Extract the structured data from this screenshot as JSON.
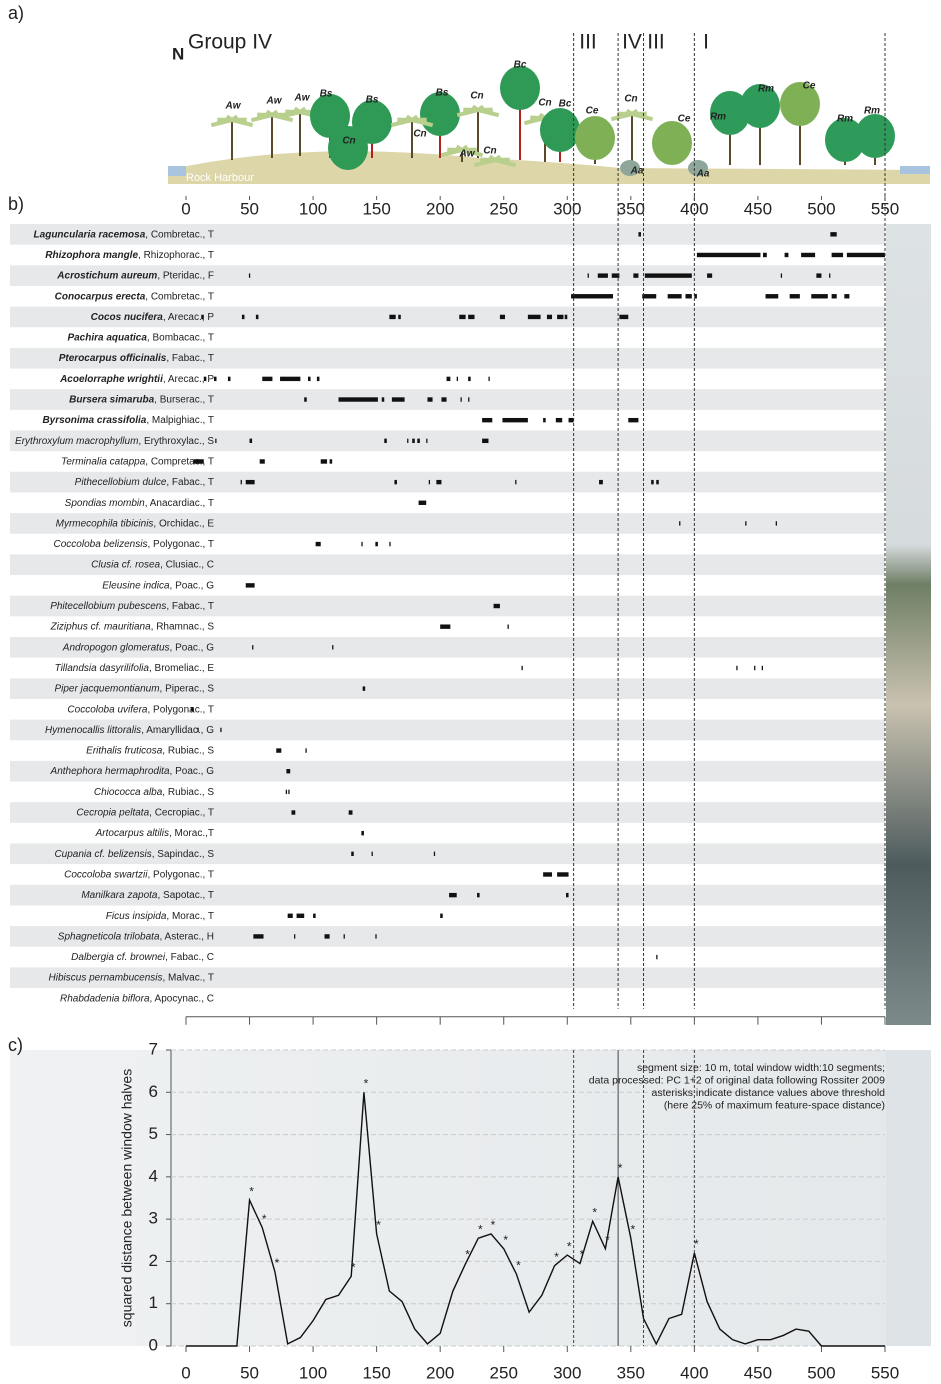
{
  "profile": {
    "panel_label": "a)",
    "north": "N",
    "group_label": "Group IV",
    "zone_labels": [
      "III",
      "IV",
      "III",
      "I"
    ],
    "place": "Rock Harbour",
    "tree_labels": [
      "Aw",
      "Aw",
      "Aw",
      "Bs",
      "Bs",
      "Cn",
      "Bs",
      "Cn",
      "Cn",
      "Aw",
      "Cn",
      "Bc",
      "Cn",
      "Bc",
      "Ce",
      "Cn",
      "Ce",
      "Aa",
      "Aa",
      "Rm",
      "Rm",
      "Ce",
      "Rm",
      "Rm"
    ]
  },
  "chart_data": [
    {
      "type": "presence",
      "panel_label": "b)",
      "xlim": [
        0,
        550
      ],
      "xticks": [
        0,
        50,
        100,
        150,
        200,
        250,
        300,
        350,
        400,
        450,
        500,
        550
      ],
      "boundaries": [
        305,
        340,
        360,
        400,
        550
      ],
      "color": "#111111",
      "rows": [
        {
          "name": "Laguncularia racemosa",
          "detail": ", Combretac., T",
          "bold": true,
          "segments": [
            [
              356,
              358
            ],
            [
              507,
              512
            ]
          ]
        },
        {
          "name": "Rhizophora mangle",
          "detail": ", Rhizophorac., T",
          "bold": true,
          "segments": [
            [
              402,
              452
            ],
            [
              454,
              457
            ],
            [
              471,
              474
            ],
            [
              484,
              495
            ],
            [
              508,
              517
            ],
            [
              520,
              550
            ]
          ]
        },
        {
          "name": "Acrostichum aureum",
          "detail": ", Pteridac., F",
          "bold": true,
          "segments": [
            [
              49.5,
              50.5
            ],
            [
              316,
              317
            ],
            [
              324,
              332
            ],
            [
              335,
              341
            ],
            [
              352,
              356
            ],
            [
              361,
              398
            ],
            [
              410,
              414
            ],
            [
              468,
              469
            ],
            [
              496,
              500
            ],
            [
              506,
              507
            ]
          ]
        },
        {
          "name": "Conocarpus erecta",
          "detail": ", Combretac., T",
          "bold": true,
          "segments": [
            [
              303,
              336
            ],
            [
              359,
              370
            ],
            [
              379,
              390
            ],
            [
              393,
              398
            ],
            [
              400,
              402
            ],
            [
              456,
              466
            ],
            [
              475,
              483
            ],
            [
              492,
              505
            ],
            [
              508,
              512
            ],
            [
              518,
              522
            ]
          ]
        },
        {
          "name": "Cocos nucifera",
          "detail": ", Arecac., P",
          "bold": true,
          "segments": [
            [
              12,
              14
            ],
            [
              44,
              46
            ],
            [
              55,
              57
            ],
            [
              160,
              165
            ],
            [
              167,
              169
            ],
            [
              215,
              220
            ],
            [
              222,
              227
            ],
            [
              247,
              251
            ],
            [
              269,
              279
            ],
            [
              284,
              288
            ],
            [
              292,
              297
            ],
            [
              298,
              300
            ],
            [
              341,
              348
            ]
          ]
        },
        {
          "name": "Pachira aquatica",
          "detail": ", Bombacac., T",
          "bold": true,
          "segments": []
        },
        {
          "name": "Pterocarpus officinalis",
          "detail": ", Fabac., T",
          "bold": true,
          "segments": []
        },
        {
          "name": "Acoelorraphe wrightii",
          "detail": ", Arecac., P",
          "bold": true,
          "segments": [
            [
              14,
              16
            ],
            [
              22,
              24
            ],
            [
              33,
              35
            ],
            [
              60,
              68
            ],
            [
              74,
              90
            ],
            [
              96,
              98
            ],
            [
              103,
              105
            ],
            [
              205,
              208
            ],
            [
              213,
              214
            ],
            [
              222,
              224
            ],
            [
              238,
              239
            ]
          ]
        },
        {
          "name": "Bursera simaruba",
          "detail": ", Burserac., T",
          "bold": true,
          "segments": [
            [
              93,
              95
            ],
            [
              120,
              151
            ],
            [
              154,
              156
            ],
            [
              162,
              172
            ],
            [
              190,
              194
            ],
            [
              201,
              205
            ],
            [
              216,
              217
            ],
            [
              222,
              223
            ]
          ]
        },
        {
          "name": "Byrsonima crassifolia",
          "detail": ", Malpighiac., T",
          "bold": true,
          "segments": [
            [
              233,
              241
            ],
            [
              249,
              269
            ],
            [
              281,
              283
            ],
            [
              291,
              296
            ],
            [
              301,
              305
            ],
            [
              348,
              356
            ]
          ]
        },
        {
          "name": "Erythroxylum macrophyllum",
          "detail": ", Erythroxylac., S",
          "bold": false,
          "segments": [
            [
              23,
              24
            ],
            [
              50,
              52
            ],
            [
              156,
              158
            ],
            [
              174,
              175
            ],
            [
              178,
              180
            ],
            [
              182,
              184
            ],
            [
              189,
              190
            ],
            [
              233,
              238
            ]
          ]
        },
        {
          "name": "Terminalia catappa",
          "detail": ", Compretac., T",
          "bold": false,
          "segments": [
            [
              6,
              14
            ],
            [
              58,
              62
            ],
            [
              106,
              111
            ],
            [
              113,
              115
            ]
          ]
        },
        {
          "name": "Pithecellobium dulce",
          "detail": ", Fabac., T",
          "bold": false,
          "segments": [
            [
              43,
              44
            ],
            [
              47,
              54
            ],
            [
              164,
              166
            ],
            [
              191,
              192
            ],
            [
              197,
              201
            ],
            [
              259,
              260
            ],
            [
              325,
              328
            ],
            [
              366,
              368
            ],
            [
              370,
              372
            ]
          ]
        },
        {
          "name": "Spondias mombin",
          "detail": ", Anacardiac., T",
          "bold": false,
          "segments": [
            [
              183,
              189
            ]
          ]
        },
        {
          "name": "Myrmecophila tibicinis",
          "detail": ", Orchidac., E",
          "bold": false,
          "segments": [
            [
              388,
              389
            ],
            [
              440,
              441
            ],
            [
              464,
              465
            ]
          ]
        },
        {
          "name": "Coccoloba belizensis",
          "detail": ", Polygonac., T",
          "bold": false,
          "segments": [
            [
              102,
              106
            ],
            [
              138,
              139
            ],
            [
              149,
              151
            ],
            [
              160,
              161
            ]
          ]
        },
        {
          "name": "Clusia cf. rosea",
          "detail": ", Clusiac., C",
          "bold": false,
          "segments": []
        },
        {
          "name": "Eleusine indica",
          "detail": ", Poac., G",
          "bold": false,
          "segments": [
            [
              47,
              54
            ]
          ]
        },
        {
          "name": "Phitecellobium pubescens",
          "detail": ", Fabac., T",
          "bold": false,
          "segments": [
            [
              242,
              247
            ]
          ]
        },
        {
          "name": "Ziziphus cf. mauritiana",
          "detail": ", Rhamnac., S",
          "bold": false,
          "segments": [
            [
              200,
              208
            ],
            [
              253,
              254
            ]
          ]
        },
        {
          "name": "Andropogon glomeratus",
          "detail": ", Poac., G",
          "bold": false,
          "segments": [
            [
              52,
              53
            ],
            [
              115,
              116
            ]
          ]
        },
        {
          "name": "Tillandsia dasyrilifolia",
          "detail": ", Bromeliac., E",
          "bold": false,
          "segments": [
            [
              264,
              265
            ],
            [
              433,
              434
            ],
            [
              447,
              448
            ],
            [
              453,
              454
            ]
          ]
        },
        {
          "name": "Piper jacquemontianum",
          "detail": ", Piperac., S",
          "bold": false,
          "segments": [
            [
              139,
              141
            ]
          ]
        },
        {
          "name": "Coccoloba uvifera",
          "detail": ", Polygonac., T",
          "bold": false,
          "segments": [
            [
              4,
              6
            ]
          ]
        },
        {
          "name": "Hymenocallis littoralis",
          "detail": ", Amaryllidac., G",
          "bold": false,
          "segments": [
            [
              9,
              10
            ],
            [
              27,
              28
            ]
          ]
        },
        {
          "name": "Erithalis fruticosa",
          "detail": ", Rubiac., S",
          "bold": false,
          "segments": [
            [
              71,
              75
            ],
            [
              94,
              95
            ]
          ]
        },
        {
          "name": "Anthephora hermaphrodita",
          "detail": ", Poac., G",
          "bold": false,
          "segments": [
            [
              79,
              82
            ]
          ]
        },
        {
          "name": "Chiococca alba",
          "detail": ", Rubiac., S",
          "bold": false,
          "segments": [
            [
              78.5,
              79.5
            ],
            [
              80.5,
              81.5
            ]
          ]
        },
        {
          "name": "Cecropia peltata",
          "detail": ", Cecropiac., T",
          "bold": false,
          "segments": [
            [
              83,
              86
            ],
            [
              128,
              131
            ]
          ]
        },
        {
          "name": "Artocarpus altilis",
          "detail": ", Morac.,T",
          "bold": false,
          "segments": [
            [
              138,
              140
            ]
          ]
        },
        {
          "name": "Cupania cf. belizensis",
          "detail": ", Sapindac., S",
          "bold": false,
          "segments": [
            [
              130,
              132
            ],
            [
              146,
              147
            ],
            [
              195,
              196
            ]
          ]
        },
        {
          "name": "Coccoloba swartzii",
          "detail": ", Polygonac., T",
          "bold": false,
          "segments": [
            [
              281,
              288
            ],
            [
              292,
              301
            ]
          ]
        },
        {
          "name": "Manilkara zapota",
          "detail": ", Sapotac., T",
          "bold": false,
          "segments": [
            [
              207,
              213
            ],
            [
              229,
              231
            ],
            [
              299,
              301
            ]
          ]
        },
        {
          "name": "Ficus insipida",
          "detail": ", Morac., T",
          "bold": false,
          "segments": [
            [
              80,
              84
            ],
            [
              87,
              93
            ],
            [
              100,
              102
            ],
            [
              200,
              202
            ]
          ]
        },
        {
          "name": "Sphagneticola trilobata",
          "detail": ", Asterac., H",
          "bold": false,
          "segments": [
            [
              53,
              61
            ],
            [
              85,
              86
            ],
            [
              109,
              113
            ],
            [
              124,
              125
            ],
            [
              149,
              150
            ]
          ]
        },
        {
          "name": "Dalbergia cf. brownei",
          "detail": ", Fabac., C",
          "bold": false,
          "segments": [
            [
              370,
              371
            ]
          ]
        },
        {
          "name": "Hibiscus pernambucensis",
          "detail": ", Malvac., T",
          "bold": false,
          "segments": []
        },
        {
          "name": "Rhabdadenia biflora",
          "detail": ", Apocynac., C",
          "bold": false,
          "segments": []
        }
      ]
    },
    {
      "type": "line",
      "panel_label": "c)",
      "ylabel": "squared distance between window halves",
      "annotation": [
        "segment size: 10 m, total window width:10 segments;",
        "data processed: PC 1+2 of original data following Rossiter 2009",
        "asterisks indicate distance values above threshold",
        "(here 25% of maximum feature-space distance)"
      ],
      "xlim": [
        0,
        550
      ],
      "ylim": [
        0,
        7
      ],
      "xticks": [
        0,
        50,
        100,
        150,
        200,
        250,
        300,
        350,
        400,
        450,
        500,
        550
      ],
      "yticks": [
        0,
        1,
        2,
        3,
        4,
        5,
        6,
        7
      ],
      "grid": true,
      "boundaries": [
        305,
        340,
        360,
        400
      ],
      "marker": "*",
      "x": [
        0,
        10,
        20,
        30,
        40,
        50,
        60,
        70,
        80,
        90,
        100,
        110,
        120,
        130,
        140,
        150,
        160,
        170,
        180,
        190,
        200,
        210,
        220,
        230,
        240,
        250,
        260,
        270,
        280,
        290,
        300,
        310,
        320,
        330,
        340,
        350,
        360,
        370,
        380,
        390,
        400,
        410,
        420,
        430,
        440,
        450,
        460,
        470,
        480,
        490,
        500,
        510,
        520,
        530,
        540,
        550
      ],
      "series": [
        {
          "color": "#111111",
          "values": [
            0,
            0,
            0,
            0,
            0,
            3.45,
            2.8,
            1.75,
            0.05,
            0.2,
            0.6,
            1.1,
            1.2,
            1.65,
            6,
            2.65,
            1.3,
            1.05,
            0.4,
            0.05,
            0.3,
            1.3,
            1.95,
            2.55,
            2.65,
            2.3,
            1.7,
            0.8,
            1.2,
            1.9,
            2.15,
            1.95,
            2.95,
            2.3,
            4,
            2.55,
            0.65,
            0.05,
            0.65,
            0.75,
            2.2,
            1.05,
            0.4,
            0.15,
            0.05,
            0.15,
            0.15,
            0.25,
            0.4,
            0.35,
            0,
            0,
            0,
            0,
            0,
            0
          ],
          "significant": [
            false,
            false,
            false,
            false,
            false,
            true,
            true,
            true,
            false,
            false,
            false,
            false,
            false,
            true,
            true,
            true,
            false,
            false,
            false,
            false,
            false,
            false,
            true,
            true,
            true,
            true,
            true,
            false,
            false,
            true,
            true,
            true,
            true,
            true,
            true,
            true,
            false,
            false,
            false,
            false,
            true,
            false,
            false,
            false,
            false,
            false,
            false,
            false,
            false,
            false,
            false,
            false,
            false,
            false,
            false,
            false
          ]
        }
      ]
    }
  ]
}
